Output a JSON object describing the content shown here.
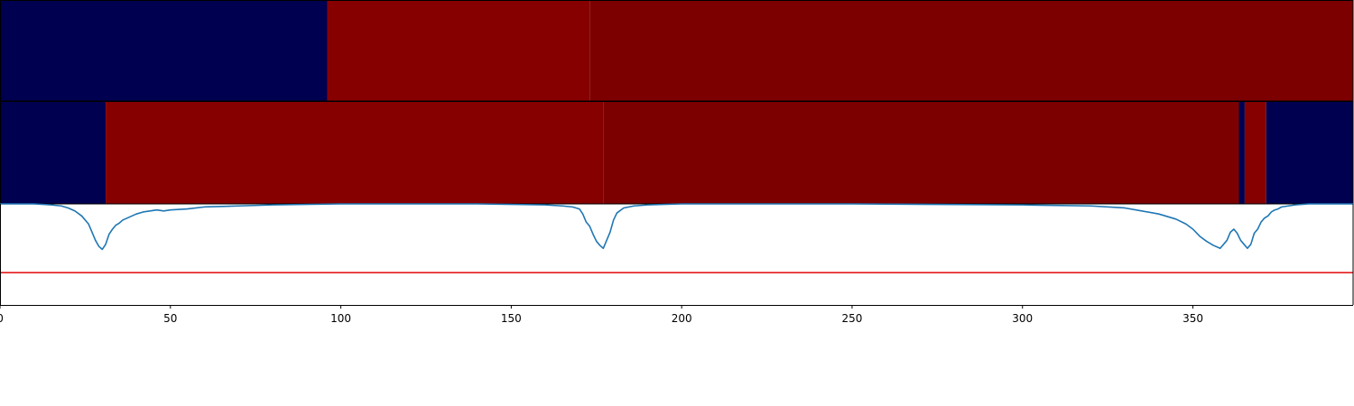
{
  "chart_data": [
    {
      "type": "heatmap",
      "panel": "top-band",
      "xlim": [
        0,
        397
      ],
      "segments": [
        {
          "start": 0,
          "end": 96,
          "color": "#000050"
        },
        {
          "start": 96,
          "end": 173,
          "color": "#870000"
        },
        {
          "start": 173,
          "end": 397,
          "color": "#7d0000"
        }
      ]
    },
    {
      "type": "heatmap",
      "panel": "middle-band",
      "xlim": [
        0,
        397
      ],
      "segments": [
        {
          "start": 0,
          "end": 31,
          "color": "#000050"
        },
        {
          "start": 31,
          "end": 177,
          "color": "#870000"
        },
        {
          "start": 177,
          "end": 363.5,
          "color": "#7d0000"
        },
        {
          "start": 363.5,
          "end": 365.2,
          "color": "#000050"
        },
        {
          "start": 365.2,
          "end": 371.5,
          "color": "#870000"
        },
        {
          "start": 371.5,
          "end": 397,
          "color": "#000050"
        }
      ]
    },
    {
      "type": "line",
      "panel": "bottom-plot",
      "xlim": [
        0,
        397
      ],
      "ylim": [
        -1.0,
        0.0
      ],
      "xticks": [
        0,
        50,
        100,
        150,
        200,
        250,
        300,
        350
      ],
      "grid": false,
      "series": [
        {
          "color": "#1f77b4",
          "x": [
            0,
            10,
            15,
            18,
            20,
            22,
            24,
            26,
            27,
            28,
            29,
            30,
            31,
            32,
            33,
            34,
            35,
            36,
            38,
            40,
            42,
            44,
            46,
            48,
            50,
            55,
            60,
            70,
            80,
            100,
            140,
            160,
            165,
            168,
            170,
            171,
            172,
            173,
            174,
            175,
            176,
            177,
            178,
            179,
            180,
            181,
            183,
            186,
            190,
            200,
            250,
            300,
            320,
            330,
            335,
            340,
            345,
            348,
            350,
            352,
            354,
            356,
            358,
            360,
            361,
            362,
            363,
            364,
            365,
            366,
            367,
            368,
            369,
            370,
            371,
            372,
            373,
            374,
            375,
            376,
            378,
            380,
            384,
            390,
            397
          ],
          "y": [
            0,
            0,
            -0.01,
            -0.02,
            -0.04,
            -0.07,
            -0.12,
            -0.2,
            -0.28,
            -0.36,
            -0.42,
            -0.45,
            -0.4,
            -0.3,
            -0.25,
            -0.21,
            -0.19,
            -0.16,
            -0.13,
            -0.1,
            -0.08,
            -0.07,
            -0.06,
            -0.07,
            -0.06,
            -0.05,
            -0.03,
            -0.02,
            -0.01,
            0,
            0,
            -0.01,
            -0.02,
            -0.03,
            -0.05,
            -0.1,
            -0.18,
            -0.22,
            -0.3,
            -0.37,
            -0.41,
            -0.44,
            -0.36,
            -0.28,
            -0.16,
            -0.09,
            -0.04,
            -0.02,
            -0.01,
            0,
            0,
            -0.01,
            -0.02,
            -0.04,
            -0.07,
            -0.1,
            -0.15,
            -0.2,
            -0.25,
            -0.32,
            -0.37,
            -0.41,
            -0.44,
            -0.36,
            -0.28,
            -0.25,
            -0.29,
            -0.36,
            -0.4,
            -0.44,
            -0.4,
            -0.29,
            -0.25,
            -0.18,
            -0.14,
            -0.12,
            -0.08,
            -0.06,
            -0.05,
            -0.03,
            -0.02,
            -0.01,
            0,
            0,
            0
          ]
        },
        {
          "color": "#e41a1c",
          "x": [
            0,
            397
          ],
          "y": [
            -0.68,
            -0.68
          ]
        }
      ]
    }
  ]
}
